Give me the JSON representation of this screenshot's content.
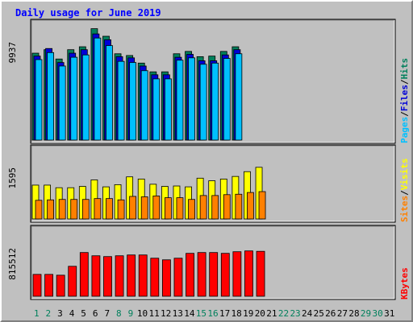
{
  "chart_data": {
    "type": "bar",
    "title": "Daily usage for June 2019",
    "colors": {
      "title": "#0000ff",
      "hits": "#00805c",
      "files": "#0000d8",
      "pages": "#00c0ff",
      "visits": "#ffff00",
      "sites": "#ff8000",
      "kbytes": "#ff0000",
      "weekday_label": "#000000",
      "weekend_label": "#00805c",
      "separator": "#000000"
    },
    "x": {
      "categories": [
        "1",
        "2",
        "3",
        "4",
        "5",
        "6",
        "7",
        "8",
        "9",
        "10",
        "11",
        "12",
        "13",
        "14",
        "15",
        "16",
        "17",
        "18",
        "19",
        "20",
        "21",
        "22",
        "23",
        "24",
        "25",
        "26",
        "27",
        "28",
        "29",
        "30",
        "31"
      ],
      "weekend_days": [
        "1",
        "2",
        "8",
        "9",
        "15",
        "16",
        "22",
        "23",
        "29",
        "30"
      ]
    },
    "panels": [
      {
        "id": "hits_files_pages",
        "max_label": "9937",
        "ylim": [
          0,
          9937
        ],
        "series": [
          {
            "name": "Hits",
            "color": "#00805c",
            "values": [
              7450,
              7750,
              6950,
              7750,
              8000,
              9550,
              8900,
              7400,
              7250,
              6600,
              5850,
              5850,
              7400,
              7600,
              7150,
              7200,
              7600,
              8000
            ]
          },
          {
            "name": "Files",
            "color": "#0000d8",
            "values": [
              7200,
              7850,
              6650,
              7450,
              7750,
              9100,
              8600,
              7150,
              7050,
              6350,
              5600,
              5600,
              7100,
              7350,
              6800,
              6800,
              7300,
              7750
            ]
          },
          {
            "name": "Pages",
            "color": "#00c0ff",
            "values": [
              6900,
              7500,
              6350,
              7100,
              7300,
              8750,
              8100,
              6750,
              6650,
              5950,
              5250,
              5250,
              6850,
              7050,
              6500,
              6600,
              7000,
              7400
            ]
          }
        ]
      },
      {
        "id": "visits_sites",
        "max_label": "1595",
        "ylim": [
          0,
          1595
        ],
        "series": [
          {
            "name": "Visits",
            "color": "#ffff00",
            "values": [
              780,
              780,
              720,
              720,
              750,
              900,
              740,
              790,
              970,
              920,
              800,
              750,
              760,
              740,
              940,
              880,
              920,
              980,
              1090,
              1190
            ]
          },
          {
            "name": "Sites",
            "color": "#ff8000",
            "values": [
              430,
              440,
              450,
              450,
              450,
              470,
              470,
              440,
              520,
              510,
              530,
              490,
              490,
              450,
              540,
              540,
              560,
              570,
              610,
              630
            ]
          }
        ]
      },
      {
        "id": "kbytes",
        "max_label": "815512",
        "ylim": [
          0,
          815512
        ],
        "series": [
          {
            "name": "KBytes",
            "color": "#ff0000",
            "values": [
              270000,
              270000,
              260000,
              370000,
              540000,
              500000,
              490000,
              500000,
              510000,
              510000,
              470000,
              450000,
              470000,
              530000,
              540000,
              540000,
              530000,
              550000,
              560000,
              555000
            ]
          }
        ]
      }
    ],
    "legends": {
      "panel1": [
        "Pages",
        "/",
        "Files",
        "/",
        "Hits"
      ],
      "panel2": [
        "Sites",
        "/",
        "Visits"
      ],
      "panel3": [
        "KBytes"
      ]
    },
    "grid": false,
    "legend_placement": "right-vertical"
  }
}
